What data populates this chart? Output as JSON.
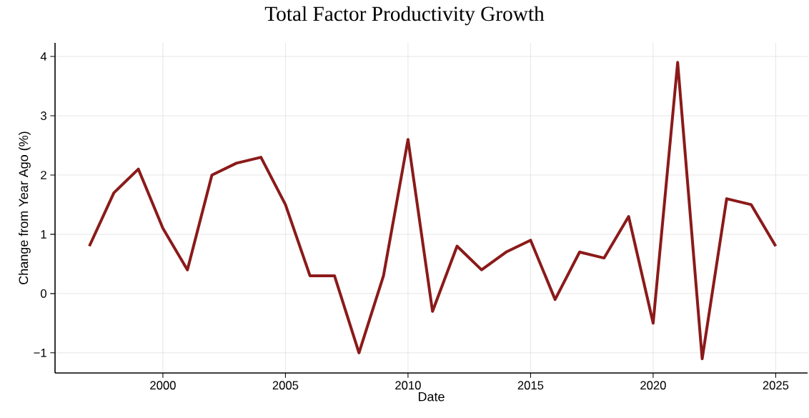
{
  "chart_data": {
    "type": "line",
    "title": "Total Factor Productivity Growth",
    "xlabel": "Date",
    "ylabel": "Change from Year Ago (%)",
    "x": [
      1997,
      1998,
      1999,
      2000,
      2001,
      2002,
      2003,
      2004,
      2005,
      2006,
      2007,
      2008,
      2009,
      2010,
      2011,
      2012,
      2013,
      2014,
      2015,
      2016,
      2017,
      2018,
      2019,
      2020,
      2021,
      2022,
      2023,
      2024,
      2025
    ],
    "values": [
      0.8,
      1.7,
      2.1,
      1.1,
      0.4,
      2.0,
      2.2,
      2.3,
      1.5,
      0.3,
      0.3,
      -1.0,
      0.3,
      2.6,
      -0.3,
      0.8,
      0.4,
      0.7,
      0.9,
      -0.1,
      0.7,
      0.6,
      1.3,
      -0.5,
      3.9,
      -1.1,
      1.6,
      1.5,
      0.8
    ],
    "color": "#8b1a1a",
    "xlim": [
      1995.6,
      2026.3
    ],
    "ylim": [
      -1.34,
      4.23
    ],
    "xticks": [
      2000,
      2005,
      2010,
      2015,
      2020,
      2025
    ],
    "yticks": [
      {
        "value": -1,
        "label": "−1"
      },
      0,
      1,
      2,
      3,
      4
    ],
    "grid": true,
    "marker": "none",
    "line_style": "solid"
  }
}
